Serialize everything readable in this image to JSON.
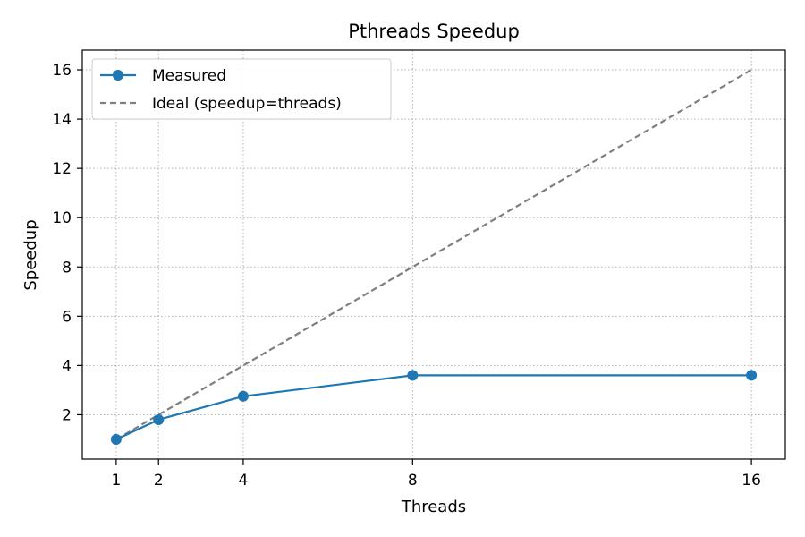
{
  "chart_data": {
    "type": "line",
    "title": "Pthreads Speedup",
    "xlabel": "Threads",
    "ylabel": "Speedup",
    "x": [
      1,
      2,
      4,
      8,
      16
    ],
    "xlim": [
      0.2,
      16.8
    ],
    "ylim": [
      0.2,
      16.8
    ],
    "x_ticks": [
      "1",
      "2",
      "4",
      "8",
      "16"
    ],
    "y_ticks": [
      "2",
      "4",
      "6",
      "8",
      "10",
      "12",
      "14",
      "16"
    ],
    "grid": true,
    "legend_position": "top-left",
    "series": [
      {
        "name": "Measured",
        "values": [
          1.0,
          1.8,
          2.75,
          3.6,
          3.6
        ],
        "color": "#1f77b4",
        "line_style": "solid",
        "marker": "circle"
      },
      {
        "name": "Ideal (speedup=threads)",
        "values": [
          1,
          2,
          4,
          8,
          16
        ],
        "color": "#7f7f7f",
        "line_style": "dashed",
        "marker": "none"
      }
    ]
  }
}
